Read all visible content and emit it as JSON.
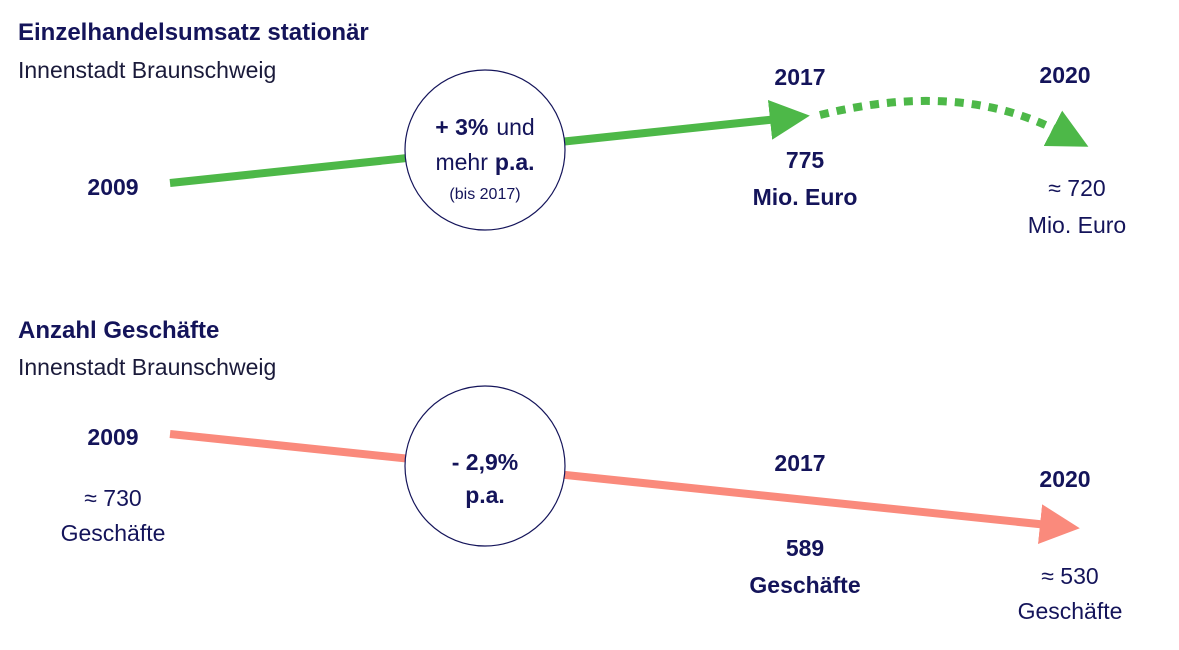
{
  "revenue": {
    "title": "Einzelhandelsumsatz stationär",
    "subtitle": "Innenstadt Braunschweig",
    "start_year": "2009",
    "circle": {
      "rate": "+ 3%",
      "word1": "und",
      "word2": "mehr",
      "pa": "p.a.",
      "note": "(bis 2017)"
    },
    "mid": {
      "year": "2017",
      "value": "775",
      "unit": "Mio. Euro"
    },
    "end": {
      "year": "2020",
      "value": "≈ 720",
      "unit": "Mio. Euro"
    }
  },
  "stores": {
    "title": "Anzahl Geschäfte",
    "subtitle": "Innenstadt Braunschweig",
    "start": {
      "year": "2009",
      "value": "≈ 730",
      "unit": "Geschäfte"
    },
    "circle": {
      "rate": "- 2,9%",
      "pa": "p.a."
    },
    "mid": {
      "year": "2017",
      "value": "589",
      "unit": "Geschäfte"
    },
    "end": {
      "year": "2020",
      "value": "≈ 530",
      "unit": "Geschäfte"
    }
  }
}
